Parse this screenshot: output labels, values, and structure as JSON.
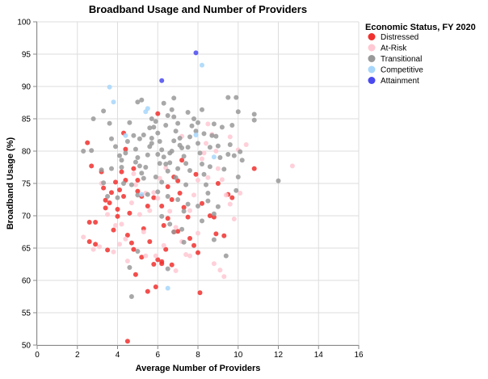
{
  "chart_data": {
    "type": "scatter",
    "title": "Broadband Usage and Number of Providers",
    "xlabel": "Average Number of Providers",
    "ylabel": "Broadband Usage (%)",
    "xlim": [
      0,
      16
    ],
    "ylim": [
      50,
      100
    ],
    "x_ticks": [
      0,
      2,
      4,
      6,
      8,
      10,
      12,
      14,
      16
    ],
    "y_ticks": [
      50,
      55,
      60,
      65,
      70,
      75,
      80,
      85,
      90,
      95,
      100
    ],
    "grid": true,
    "legend": {
      "title": "Economic Status, FY 2020",
      "placement": "right"
    },
    "series": [
      {
        "name": "Distressed",
        "color": "#f0302e",
        "points": [
          [
            2.5,
            81.3
          ],
          [
            2.7,
            77.7
          ],
          [
            2.6,
            69.0
          ],
          [
            2.9,
            69.0
          ],
          [
            2.6,
            66.0
          ],
          [
            2.9,
            65.6
          ],
          [
            3.2,
            76.8
          ],
          [
            3.3,
            74.3
          ],
          [
            3.4,
            72.4
          ],
          [
            3.6,
            72.0
          ],
          [
            3.4,
            71.2
          ],
          [
            3.7,
            73.6
          ],
          [
            3.9,
            75.2
          ],
          [
            3.8,
            67.8
          ],
          [
            3.5,
            64.7
          ],
          [
            4.1,
            74.0
          ],
          [
            4.0,
            71.0
          ],
          [
            4.3,
            82.8
          ],
          [
            4.4,
            80.3
          ],
          [
            4.2,
            76.8
          ],
          [
            4.4,
            75.5
          ],
          [
            4.3,
            73.0
          ],
          [
            4.6,
            70.4
          ],
          [
            4.5,
            67.0
          ],
          [
            4.7,
            65.8
          ],
          [
            4.8,
            64.8
          ],
          [
            4.9,
            60.9
          ],
          [
            4.8,
            77.3
          ],
          [
            5.0,
            75.5
          ],
          [
            5.0,
            73.8
          ],
          [
            5.2,
            73.0
          ],
          [
            5.3,
            68.0
          ],
          [
            5.5,
            71.5
          ],
          [
            5.2,
            63.6
          ],
          [
            5.5,
            58.3
          ],
          [
            5.8,
            62.5
          ],
          [
            5.9,
            59.0
          ],
          [
            6.0,
            63.2
          ],
          [
            6.2,
            62.9
          ],
          [
            6.2,
            62.6
          ],
          [
            6.4,
            64.8
          ],
          [
            6.3,
            68.5
          ],
          [
            6.5,
            69.6
          ],
          [
            6.2,
            71.5
          ],
          [
            6.7,
            72.5
          ],
          [
            6.5,
            74.5
          ],
          [
            6.8,
            76.0
          ],
          [
            7.0,
            75.4
          ],
          [
            7.1,
            73.5
          ],
          [
            7.3,
            71.3
          ],
          [
            7.5,
            69.8
          ],
          [
            7.6,
            66.5
          ],
          [
            7.8,
            65.4
          ],
          [
            8.0,
            64.3
          ],
          [
            8.1,
            58.1
          ],
          [
            7.0,
            67.6
          ],
          [
            6.7,
            62.4
          ],
          [
            6.0,
            85.8
          ],
          [
            7.9,
            76.4
          ],
          [
            8.2,
            71.9
          ],
          [
            8.6,
            70.0
          ],
          [
            8.8,
            69.8
          ],
          [
            8.9,
            67.2
          ],
          [
            9.3,
            66.9
          ],
          [
            9.0,
            75.0
          ],
          [
            9.5,
            73.3
          ],
          [
            9.7,
            72.8
          ],
          [
            10.8,
            77.3
          ],
          [
            4.5,
            50.6
          ],
          [
            5.6,
            66.0
          ],
          [
            6.8,
            67.5
          ],
          [
            7.2,
            78.6
          ],
          [
            5.8,
            72.8
          ],
          [
            4.0,
            69.9
          ]
        ]
      },
      {
        "name": "At-Risk",
        "color": "#ffc8d2",
        "points": [
          [
            2.3,
            66.7
          ],
          [
            2.8,
            64.8
          ],
          [
            3.1,
            65.2
          ],
          [
            3.5,
            70.2
          ],
          [
            3.9,
            68.5
          ],
          [
            4.2,
            68.7
          ],
          [
            4.4,
            66.4
          ],
          [
            4.7,
            72.0
          ],
          [
            4.9,
            74.8
          ],
          [
            5.1,
            70.2
          ],
          [
            5.3,
            67.5
          ],
          [
            5.6,
            70.8
          ],
          [
            5.8,
            73.6
          ],
          [
            6.1,
            75.8
          ],
          [
            6.4,
            77.4
          ],
          [
            6.6,
            70.7
          ],
          [
            6.9,
            68.2
          ],
          [
            7.2,
            66.0
          ],
          [
            7.4,
            64.0
          ],
          [
            7.6,
            70.8
          ],
          [
            7.8,
            73.2
          ],
          [
            8.0,
            75.5
          ],
          [
            8.2,
            78.8
          ],
          [
            8.4,
            81.2
          ],
          [
            8.5,
            84.2
          ],
          [
            8.7,
            82.6
          ],
          [
            8.9,
            80.0
          ],
          [
            9.0,
            77.3
          ],
          [
            9.2,
            75.6
          ],
          [
            9.4,
            73.2
          ],
          [
            9.6,
            71.8
          ],
          [
            9.8,
            69.5
          ],
          [
            10.0,
            80.2
          ],
          [
            10.4,
            81.0
          ],
          [
            10.1,
            73.5
          ],
          [
            12.7,
            77.7
          ],
          [
            9.1,
            61.6
          ],
          [
            9.3,
            60.6
          ],
          [
            8.8,
            62.6
          ],
          [
            7.6,
            63.8
          ],
          [
            6.9,
            61.5
          ],
          [
            6.3,
            65.4
          ],
          [
            5.9,
            63.8
          ],
          [
            5.4,
            63.8
          ],
          [
            4.5,
            63.0
          ],
          [
            4.1,
            65.6
          ],
          [
            3.8,
            64.4
          ],
          [
            8.3,
            79.7
          ],
          [
            7.2,
            82.3
          ],
          [
            8.5,
            75.9
          ],
          [
            9.6,
            82.2
          ],
          [
            6.0,
            72.7
          ],
          [
            5.4,
            73.5
          ],
          [
            4.8,
            76.5
          ],
          [
            3.2,
            75.0
          ],
          [
            8.0,
            67.3
          ]
        ]
      },
      {
        "name": "Transitional",
        "color": "#999999",
        "points": [
          [
            2.8,
            85.0
          ],
          [
            3.3,
            86.2
          ],
          [
            3.6,
            84.3
          ],
          [
            3.7,
            81.9
          ],
          [
            3.9,
            80.7
          ],
          [
            4.1,
            79.3
          ],
          [
            4.2,
            78.6
          ],
          [
            4.5,
            81.5
          ],
          [
            4.6,
            84.4
          ],
          [
            4.8,
            82.4
          ],
          [
            4.9,
            80.3
          ],
          [
            5.0,
            79.0
          ],
          [
            5.1,
            77.7
          ],
          [
            5.2,
            76.6
          ],
          [
            5.3,
            75.8
          ],
          [
            5.4,
            77.5
          ],
          [
            5.5,
            79.4
          ],
          [
            5.6,
            80.7
          ],
          [
            5.7,
            82.0
          ],
          [
            5.8,
            83.7
          ],
          [
            5.9,
            84.6
          ],
          [
            6.0,
            82.8
          ],
          [
            6.1,
            81.5
          ],
          [
            6.2,
            80.2
          ],
          [
            6.3,
            79.1
          ],
          [
            6.4,
            78.0
          ],
          [
            6.5,
            76.9
          ],
          [
            6.6,
            78.2
          ],
          [
            6.7,
            80.0
          ],
          [
            6.8,
            81.6
          ],
          [
            6.9,
            83.1
          ],
          [
            7.0,
            84.3
          ],
          [
            7.1,
            82.0
          ],
          [
            7.2,
            80.5
          ],
          [
            7.3,
            79.2
          ],
          [
            7.4,
            78.1
          ],
          [
            7.5,
            80.6
          ],
          [
            7.6,
            82.2
          ],
          [
            7.7,
            83.9
          ],
          [
            7.8,
            85.0
          ],
          [
            7.9,
            83.1
          ],
          [
            8.0,
            81.2
          ],
          [
            8.1,
            79.7
          ],
          [
            8.2,
            78.0
          ],
          [
            8.3,
            76.4
          ],
          [
            8.4,
            74.8
          ],
          [
            8.5,
            73.5
          ],
          [
            8.6,
            80.6
          ],
          [
            8.7,
            82.4
          ],
          [
            8.8,
            84.2
          ],
          [
            8.9,
            82.3
          ],
          [
            9.0,
            80.8
          ],
          [
            9.1,
            79.0
          ],
          [
            9.3,
            77.2
          ],
          [
            9.5,
            79.5
          ],
          [
            9.6,
            81.0
          ],
          [
            9.8,
            79.3
          ],
          [
            10.0,
            76.0
          ],
          [
            10.2,
            78.6
          ],
          [
            10.8,
            85.7
          ],
          [
            10.0,
            86.1
          ],
          [
            12.0,
            75.4
          ],
          [
            9.5,
            88.3
          ],
          [
            9.9,
            88.3
          ],
          [
            10.8,
            84.8
          ],
          [
            5.0,
            87.6
          ],
          [
            5.2,
            87.9
          ],
          [
            6.3,
            87.4
          ],
          [
            6.8,
            88.2
          ],
          [
            6.7,
            86.4
          ],
          [
            5.7,
            85.0
          ],
          [
            6.5,
            85.5
          ],
          [
            7.5,
            86.0
          ],
          [
            8.2,
            86.4
          ],
          [
            5.0,
            73.2
          ],
          [
            5.5,
            73.3
          ],
          [
            6.0,
            73.7
          ],
          [
            6.5,
            73.0
          ],
          [
            7.0,
            72.5
          ],
          [
            7.5,
            71.8
          ],
          [
            8.0,
            71.5
          ],
          [
            8.5,
            72.3
          ],
          [
            9.0,
            71.4
          ],
          [
            6.2,
            69.9
          ],
          [
            6.6,
            68.7
          ],
          [
            6.8,
            67.5
          ],
          [
            7.2,
            67.9
          ],
          [
            7.3,
            65.9
          ],
          [
            8.8,
            66.3
          ],
          [
            9.4,
            63.8
          ],
          [
            6.5,
            61.8
          ],
          [
            5.0,
            64.5
          ],
          [
            4.6,
            62.0
          ],
          [
            4.7,
            57.5
          ],
          [
            2.3,
            80.0
          ],
          [
            2.7,
            80.1
          ],
          [
            3.2,
            77.1
          ],
          [
            3.3,
            75.1
          ],
          [
            3.5,
            73.0
          ],
          [
            4.0,
            72.8
          ],
          [
            4.2,
            77.5
          ],
          [
            4.3,
            75.0
          ],
          [
            4.7,
            74.8
          ],
          [
            5.3,
            82.5
          ],
          [
            5.6,
            83.6
          ],
          [
            6.0,
            79.5
          ],
          [
            6.4,
            84.0
          ],
          [
            7.0,
            77.3
          ],
          [
            7.6,
            77.0
          ],
          [
            8.0,
            84.4
          ],
          [
            8.3,
            82.7
          ],
          [
            8.6,
            77.6
          ],
          [
            9.2,
            83.7
          ],
          [
            9.7,
            84.0
          ],
          [
            10.1,
            79.9
          ],
          [
            7.3,
            70.7
          ],
          [
            6.9,
            75.9
          ],
          [
            6.1,
            78.1
          ],
          [
            5.9,
            76.0
          ],
          [
            4.9,
            78.3
          ],
          [
            8.8,
            70.3
          ],
          [
            9.9,
            73.9
          ],
          [
            7.1,
            80.9
          ],
          [
            6.6,
            79.7
          ],
          [
            7.4,
            74.8
          ],
          [
            5.1,
            81.9
          ],
          [
            8.2,
            69.2
          ],
          [
            6.2,
            75.2
          ],
          [
            4.4,
            79.7
          ],
          [
            3.7,
            77.3
          ],
          [
            6.8,
            85.3
          ],
          [
            5.7,
            81.2
          ]
        ]
      },
      {
        "name": "Competitive",
        "color": "#a7d6fa",
        "points": [
          [
            3.6,
            89.9
          ],
          [
            3.8,
            87.6
          ],
          [
            5.5,
            86.6
          ],
          [
            5.4,
            86.1
          ],
          [
            8.2,
            93.3
          ],
          [
            6.5,
            58.8
          ],
          [
            5.2,
            73.3
          ],
          [
            4.4,
            82.4
          ],
          [
            7.9,
            82.5
          ],
          [
            8.8,
            79.1
          ]
        ]
      },
      {
        "name": "Attainment",
        "color": "#4a4af0",
        "points": [
          [
            7.9,
            95.2
          ],
          [
            6.2,
            90.9
          ]
        ]
      }
    ]
  }
}
